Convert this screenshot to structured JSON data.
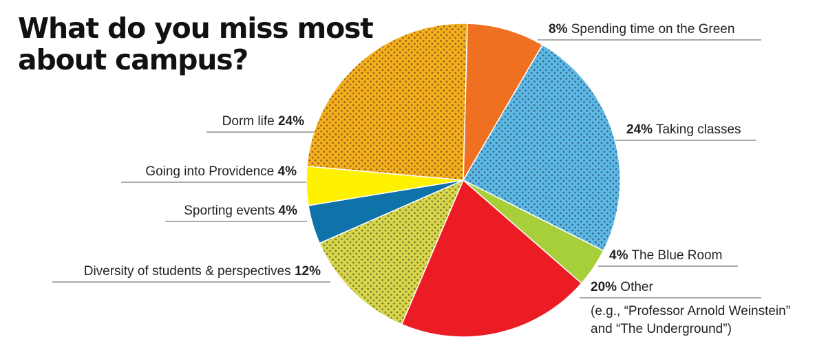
{
  "title": "What do you miss most about campus?",
  "chart_data": {
    "type": "pie",
    "title": "What do you miss most about campus?",
    "unit": "%",
    "slices": [
      {
        "label": "Spending time on the Green",
        "value": 8,
        "display": "8%",
        "color": "#f07022"
      },
      {
        "label": "Taking classes",
        "value": 24,
        "display": "24%",
        "color": "#5cb8e6"
      },
      {
        "label": "The Blue Room",
        "value": 4,
        "display": "4%",
        "color": "#a6cf3a"
      },
      {
        "label": "Other",
        "value": 20,
        "display": "20%",
        "color": "#ec1c24",
        "note": [
          "(e.g., “Professor Arnold Weinstein”",
          "and “The Underground”)"
        ]
      },
      {
        "label": "Diversity of students & perspectives",
        "value": 12,
        "display": "12%",
        "color": "#d8d64a"
      },
      {
        "label": "Sporting events",
        "value": 4,
        "display": "4%",
        "color": "#0f72a8"
      },
      {
        "label": "Going into Providence",
        "value": 4,
        "display": "4%",
        "color": "#fff200"
      },
      {
        "label": "Dorm life",
        "value": 24,
        "display": "24%",
        "color": "#f5ae1c"
      }
    ]
  }
}
